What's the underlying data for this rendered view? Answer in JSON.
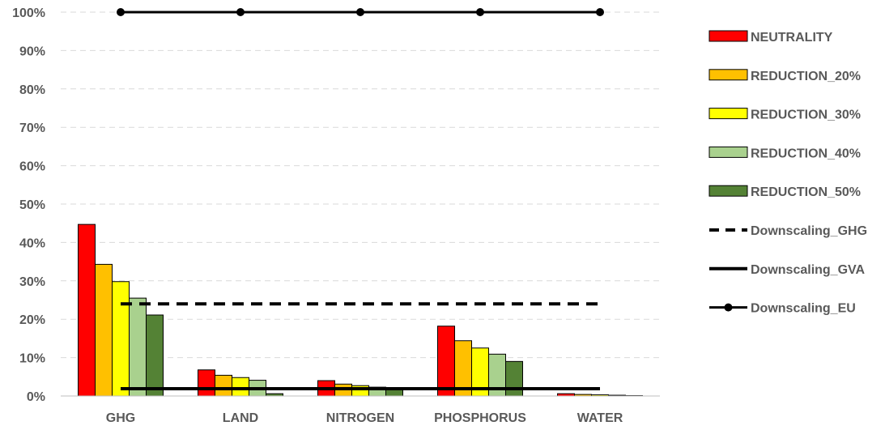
{
  "chart_data": {
    "type": "bar",
    "title": "",
    "xlabel": "",
    "ylabel": "",
    "ylim": [
      0,
      100
    ],
    "yticks": [
      "0%",
      "10%",
      "20%",
      "30%",
      "40%",
      "50%",
      "60%",
      "70%",
      "80%",
      "90%",
      "100%"
    ],
    "grid": true,
    "legend_position": "right",
    "categories": [
      "GHG",
      "LAND",
      "NITROGEN",
      "PHOSPHORUS",
      "WATER"
    ],
    "series": [
      {
        "name": "NEUTRALITY",
        "color": "#ff0000",
        "values": [
          44.7,
          6.8,
          4.0,
          18.2,
          0.6
        ]
      },
      {
        "name": "REDUCTION_20%",
        "color": "#ffc000",
        "values": [
          34.3,
          5.4,
          3.1,
          14.4,
          0.4
        ]
      },
      {
        "name": "REDUCTION_30%",
        "color": "#ffff00",
        "values": [
          29.8,
          4.8,
          2.7,
          12.5,
          0.3
        ]
      },
      {
        "name": "REDUCTION_40%",
        "color": "#a9d18e",
        "values": [
          25.5,
          4.1,
          2.3,
          10.9,
          0.2
        ]
      },
      {
        "name": "REDUCTION_50%",
        "color": "#548235",
        "values": [
          21.1,
          0.6,
          1.9,
          9.0,
          0.1
        ]
      }
    ],
    "lines": [
      {
        "name": "Downscaling_GHG",
        "style": "dashed",
        "value": 24.0
      },
      {
        "name": "Downscaling_GVA",
        "style": "solid",
        "value": 1.9
      },
      {
        "name": "Downscaling_EU",
        "style": "solid-markers",
        "value": 100.0
      }
    ]
  }
}
